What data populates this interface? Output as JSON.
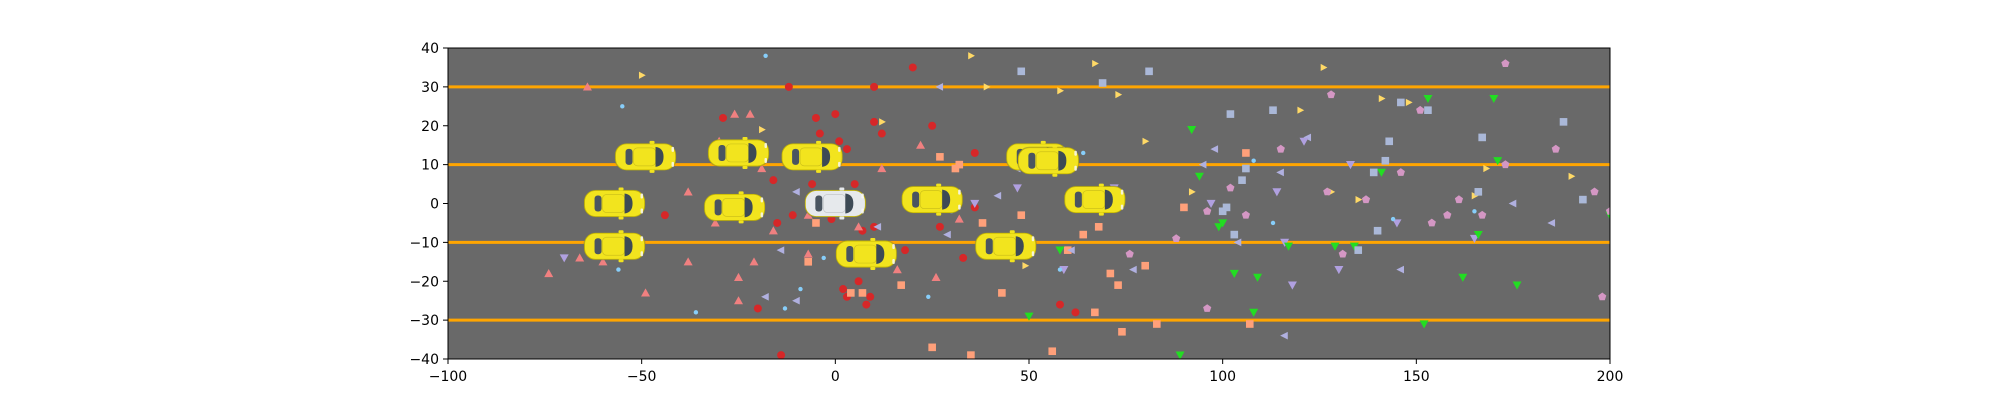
{
  "chart_data": {
    "type": "scatter",
    "title": "",
    "xlabel": "",
    "ylabel": "",
    "xlim": [
      -100,
      200
    ],
    "ylim": [
      -40,
      40
    ],
    "xticks": [
      -100,
      -50,
      0,
      50,
      100,
      150,
      200
    ],
    "yticks": [
      -40,
      -30,
      -20,
      -10,
      0,
      10,
      20,
      30,
      40
    ],
    "xtick_labels": [
      "−100",
      "−50",
      "0",
      "50",
      "100",
      "150",
      "200"
    ],
    "ytick_labels": [
      "−40",
      "−30",
      "−20",
      "−10",
      "0",
      "10",
      "20",
      "30",
      "40"
    ],
    "background_color": "#696969",
    "lane_line_color": "#ffa500",
    "lane_lines_y": [
      30,
      10,
      -10,
      -30
    ],
    "ego_vehicle": {
      "x": 0,
      "y": 0,
      "color": "#e6e9ec"
    },
    "vehicles": [
      {
        "x": -49,
        "y": 12
      },
      {
        "x": -25,
        "y": 13
      },
      {
        "x": -6,
        "y": 12
      },
      {
        "x": 52,
        "y": 12
      },
      {
        "x": 55,
        "y": 11
      },
      {
        "x": -57,
        "y": 0
      },
      {
        "x": -26,
        "y": -1
      },
      {
        "x": 25,
        "y": 1
      },
      {
        "x": 67,
        "y": 1
      },
      {
        "x": -57,
        "y": -11
      },
      {
        "x": 8,
        "y": -13
      },
      {
        "x": 44,
        "y": -11
      }
    ],
    "vehicle_color": "#f2e41e",
    "series": [
      {
        "marker": "circle",
        "color": "#d62728",
        "points": [
          [
            -44,
            -3
          ],
          [
            -29,
            22
          ],
          [
            -22,
            -1
          ],
          [
            -20,
            -27
          ],
          [
            -16,
            6
          ],
          [
            -15,
            -5
          ],
          [
            -12,
            30
          ],
          [
            -11,
            -3
          ],
          [
            -6,
            5
          ],
          [
            -5,
            22
          ],
          [
            -4,
            18
          ],
          [
            -1,
            -4
          ],
          [
            -3,
            13
          ],
          [
            1,
            16
          ],
          [
            0,
            23
          ],
          [
            2,
            -22
          ],
          [
            3,
            14
          ],
          [
            3,
            -24
          ],
          [
            5,
            5
          ],
          [
            6,
            -20
          ],
          [
            7,
            -7
          ],
          [
            8,
            -26
          ],
          [
            9,
            -24
          ],
          [
            10,
            30
          ],
          [
            10,
            -6
          ],
          [
            10,
            21
          ],
          [
            12,
            18
          ],
          [
            18,
            -12
          ],
          [
            20,
            35
          ],
          [
            25,
            20
          ],
          [
            27,
            -6
          ],
          [
            33,
            -14
          ],
          [
            36,
            13
          ],
          [
            36,
            -1
          ],
          [
            58,
            -26
          ],
          [
            62,
            -28
          ],
          [
            -14,
            -39
          ]
        ]
      },
      {
        "marker": "triangle-up",
        "color": "#f08080",
        "points": [
          [
            -64,
            30
          ],
          [
            -74,
            -18
          ],
          [
            -66,
            -14
          ],
          [
            -60,
            -15
          ],
          [
            -49,
            -23
          ],
          [
            -38,
            3
          ],
          [
            -38,
            -15
          ],
          [
            -31,
            -5
          ],
          [
            -30,
            16
          ],
          [
            -26,
            23
          ],
          [
            -25,
            -25
          ],
          [
            -25,
            -19
          ],
          [
            -21,
            -15
          ],
          [
            -16,
            -7
          ],
          [
            -19,
            9
          ],
          [
            -22,
            23
          ],
          [
            -4,
            11
          ],
          [
            -7,
            -13
          ],
          [
            -7,
            -3
          ],
          [
            -3,
            13
          ],
          [
            6,
            -6
          ],
          [
            12,
            9
          ],
          [
            16,
            -17
          ],
          [
            22,
            15
          ],
          [
            26,
            -19
          ],
          [
            32,
            -4
          ]
        ]
      },
      {
        "marker": "square",
        "color": "#ffa07a",
        "points": [
          [
            -20,
            0
          ],
          [
            -5,
            -5
          ],
          [
            -7,
            -15
          ],
          [
            4,
            -23
          ],
          [
            7,
            -23
          ],
          [
            17,
            -21
          ],
          [
            25,
            -37
          ],
          [
            27,
            12
          ],
          [
            31,
            9
          ],
          [
            32,
            10
          ],
          [
            35,
            -39
          ],
          [
            38,
            -5
          ],
          [
            43,
            -23
          ],
          [
            48,
            -3
          ],
          [
            60,
            -12
          ],
          [
            56,
            -38
          ],
          [
            64,
            -8
          ],
          [
            67,
            -28
          ],
          [
            68,
            -6
          ],
          [
            71,
            -18
          ],
          [
            73,
            -21
          ],
          [
            74,
            -33
          ],
          [
            83,
            -31
          ],
          [
            80,
            -16
          ],
          [
            90,
            -1
          ],
          [
            106,
            13
          ],
          [
            107,
            -31
          ]
        ]
      },
      {
        "marker": "triangle-right",
        "color": "#ffd966",
        "points": [
          [
            -50,
            33
          ],
          [
            -19,
            19
          ],
          [
            12,
            21
          ],
          [
            35,
            38
          ],
          [
            39,
            30
          ],
          [
            49,
            -16
          ],
          [
            58,
            29
          ],
          [
            67,
            36
          ],
          [
            73,
            28
          ],
          [
            80,
            16
          ],
          [
            92,
            3
          ],
          [
            120,
            24
          ],
          [
            126,
            35
          ],
          [
            128,
            3
          ],
          [
            135,
            1
          ],
          [
            141,
            27
          ],
          [
            148,
            26
          ],
          [
            165,
            2
          ],
          [
            168,
            9
          ],
          [
            190,
            7
          ]
        ]
      },
      {
        "marker": "triangle-left",
        "color": "#b0b0e0",
        "points": [
          [
            -18,
            -24
          ],
          [
            -10,
            -25
          ],
          [
            -5,
            -1
          ],
          [
            -14,
            -12
          ],
          [
            -10,
            3
          ],
          [
            11,
            -6
          ],
          [
            27,
            30
          ],
          [
            27,
            -1
          ],
          [
            29,
            -8
          ],
          [
            42,
            2
          ],
          [
            47,
            9
          ],
          [
            61,
            -12
          ],
          [
            77,
            -17
          ],
          [
            95,
            10
          ],
          [
            98,
            14
          ],
          [
            104,
            -10
          ],
          [
            116,
            -34
          ],
          [
            115,
            8
          ],
          [
            122,
            17
          ],
          [
            146,
            -17
          ],
          [
            175,
            0
          ],
          [
            185,
            -5
          ]
        ]
      },
      {
        "marker": "triangle-down",
        "color": "#b0a0e0",
        "points": [
          [
            -70,
            -14
          ],
          [
            36,
            0
          ],
          [
            47,
            4
          ],
          [
            59,
            -17
          ],
          [
            72,
            4
          ],
          [
            97,
            0
          ],
          [
            114,
            3
          ],
          [
            116,
            -10
          ],
          [
            118,
            -21
          ],
          [
            121,
            16
          ],
          [
            130,
            -17
          ],
          [
            133,
            10
          ],
          [
            145,
            -5
          ],
          [
            165,
            -9
          ]
        ]
      },
      {
        "marker": "triangle-down-green",
        "color": "#22dd22",
        "points": [
          [
            92,
            19
          ],
          [
            94,
            7
          ],
          [
            99,
            -6
          ],
          [
            100,
            -5
          ],
          [
            103,
            -18
          ],
          [
            109,
            -19
          ],
          [
            117,
            -11
          ],
          [
            129,
            -11
          ],
          [
            134,
            -11
          ],
          [
            141,
            8
          ],
          [
            152,
            -31
          ],
          [
            153,
            27
          ],
          [
            162,
            -19
          ],
          [
            166,
            -8
          ],
          [
            170,
            27
          ],
          [
            171,
            11
          ],
          [
            176,
            -21
          ],
          [
            200,
            -3
          ],
          [
            89,
            -39
          ],
          [
            108,
            -28
          ],
          [
            50,
            -29
          ],
          [
            58,
            -12
          ]
        ]
      },
      {
        "marker": "pentagon",
        "color": "#d497c4",
        "points": [
          [
            76,
            -13
          ],
          [
            88,
            -9
          ],
          [
            96,
            -2
          ],
          [
            102,
            4
          ],
          [
            106,
            -3
          ],
          [
            115,
            14
          ],
          [
            127,
            3
          ],
          [
            131,
            -13
          ],
          [
            137,
            1
          ],
          [
            146,
            8
          ],
          [
            154,
            -5
          ],
          [
            158,
            -3
          ],
          [
            161,
            1
          ],
          [
            167,
            -3
          ],
          [
            173,
            10
          ],
          [
            186,
            14
          ],
          [
            196,
            3
          ],
          [
            198,
            -24
          ],
          [
            200,
            -2
          ],
          [
            96,
            -27
          ],
          [
            128,
            28
          ],
          [
            151,
            24
          ],
          [
            173,
            36
          ]
        ]
      },
      {
        "marker": "square-blue",
        "color": "#aab8d8",
        "points": [
          [
            48,
            34
          ],
          [
            69,
            31
          ],
          [
            81,
            34
          ],
          [
            100,
            -2
          ],
          [
            101,
            -1
          ],
          [
            103,
            -8
          ],
          [
            105,
            6
          ],
          [
            106,
            9
          ],
          [
            113,
            24
          ],
          [
            135,
            -12
          ],
          [
            139,
            8
          ],
          [
            142,
            11
          ],
          [
            143,
            16
          ],
          [
            146,
            26
          ],
          [
            153,
            24
          ],
          [
            166,
            3
          ],
          [
            167,
            17
          ],
          [
            188,
            21
          ],
          [
            193,
            1
          ],
          [
            102,
            23
          ],
          [
            140,
            -7
          ]
        ]
      },
      {
        "marker": "dot-light",
        "color": "#87cefa",
        "points": [
          [
            -55,
            25
          ],
          [
            -56,
            -17
          ],
          [
            -36,
            -28
          ],
          [
            -18,
            38
          ],
          [
            -13,
            -27
          ],
          [
            -9,
            -22
          ],
          [
            -3,
            -14
          ],
          [
            3,
            0
          ],
          [
            24,
            -24
          ],
          [
            30,
            -2
          ],
          [
            58,
            -17
          ],
          [
            64,
            13
          ],
          [
            108,
            11
          ],
          [
            113,
            -5
          ],
          [
            144,
            -4
          ],
          [
            165,
            -2
          ]
        ]
      }
    ]
  }
}
